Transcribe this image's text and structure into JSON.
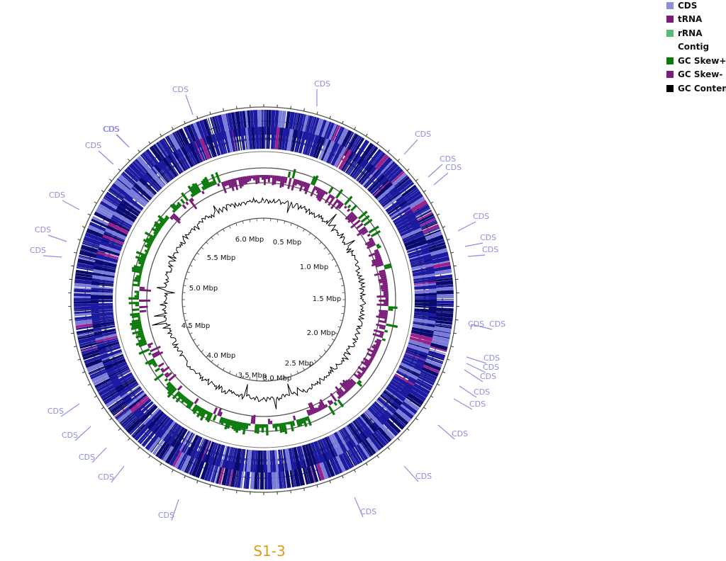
{
  "caption": "S1-3",
  "legend": [
    {
      "label": "CDS",
      "color": "#8d8fdc"
    },
    {
      "label": "tRNA",
      "color": "#7a1c78"
    },
    {
      "label": "rRNA",
      "color": "#5cb87a"
    },
    {
      "label": "Contig",
      "color": ""
    },
    {
      "label": "GC Skew+",
      "color": "#0b7a0b"
    },
    {
      "label": "GC Skew-",
      "color": "#7a1c7a"
    },
    {
      "label": "GC Content",
      "color": "#000000"
    }
  ],
  "ruler_labels": [
    "0.5 Mbp",
    "1.0 Mbp",
    "1.5 Mbp",
    "2.0 Mbp",
    "2.5 Mbp",
    "3.0 Mbp",
    "3.5 Mbp",
    "4.0 Mbp",
    "4.5 Mbp",
    "5.0 Mbp",
    "5.5 Mbp",
    "6.0 Mbp"
  ],
  "feature_label": "CDS",
  "feature_label_count": 29,
  "colors": {
    "cds": "#1c1aa0",
    "cds_dark": "#0a0a6e",
    "cds_light": "#7a7cd8",
    "trna": "#a0208a",
    "gc_skew_plus": "#0b7a0b",
    "gc_skew_minus": "#7a1c7a",
    "gc_content": "#000000",
    "feature_label": "#8d8fdc",
    "ring_line": "#555555"
  }
}
